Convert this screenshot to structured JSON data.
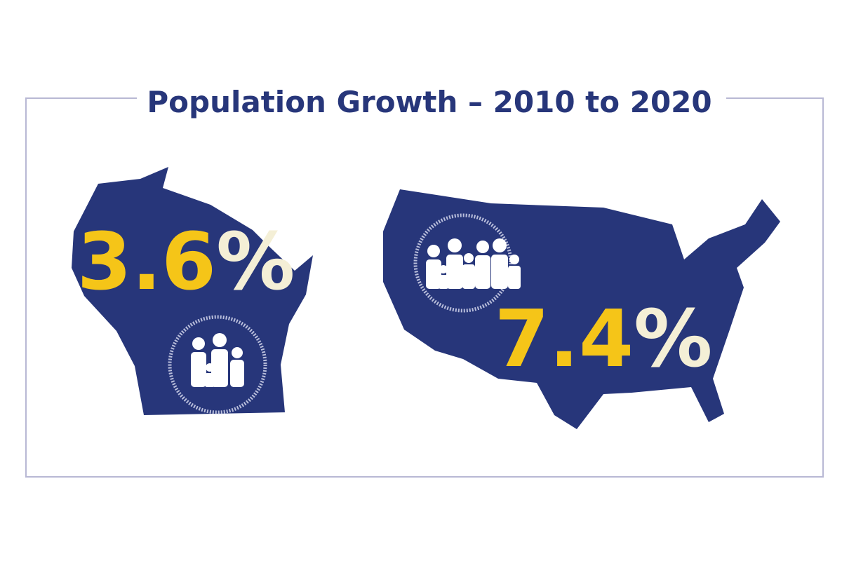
{
  "header": {
    "title": "Population Growth – 2010 to 2020"
  },
  "stats": [
    {
      "number": 3.6,
      "unit": "%"
    },
    {
      "number": 7.4,
      "unit": "%"
    }
  ]
}
